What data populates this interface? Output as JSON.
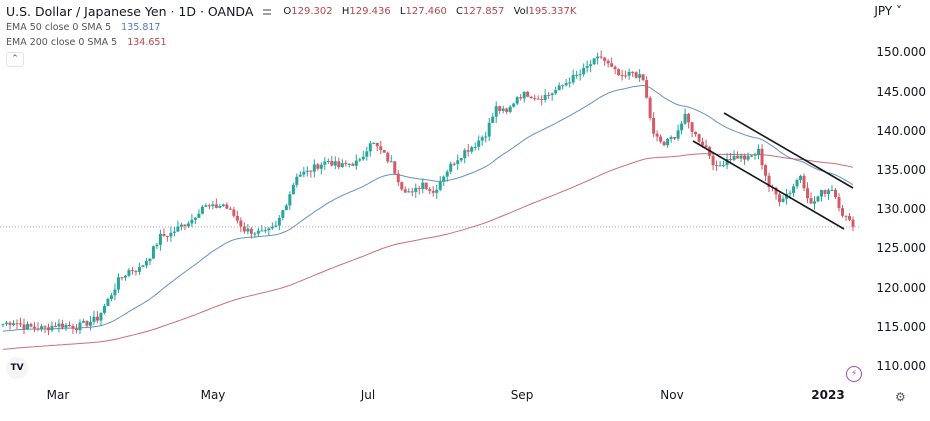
{
  "header": {
    "symbol_title": "U.S. Dollar / Japanese Yen · 1D · OANDA",
    "ohlc": [
      {
        "label": "O",
        "value": "129.302"
      },
      {
        "label": "H",
        "value": "129.436"
      },
      {
        "label": "L",
        "value": "127.460"
      },
      {
        "label": "C",
        "value": "127.857"
      },
      {
        "label": "Vol",
        "value": "195.337K"
      }
    ],
    "indicators": [
      {
        "label": "EMA 50 close 0 SMA 5",
        "value": "135.817",
        "color": "#4a7fb8"
      },
      {
        "label": "EMA 200 close 0 SMA 5",
        "value": "134.651",
        "color": "#c0485a"
      }
    ],
    "collapse_icon": "chevron-up-icon",
    "currency": "JPY",
    "currency_icon": "chevron-down-icon"
  },
  "footer": {
    "logo_text": "TV",
    "bolt_icon": "lightning-icon",
    "settings_icon": "gear-icon"
  },
  "colors": {
    "up": "#26a69a",
    "down": "#d35a66",
    "ema50": "#4a7fb8",
    "ema200": "#c0485a",
    "channel": "#1a1a1a",
    "price_line": "#c9a0a4"
  },
  "chart_data": {
    "type": "candlestick",
    "title": "U.S. Dollar / Japanese Yen · 1D · OANDA",
    "xlabel": "",
    "ylabel": "JPY",
    "x_tick_labels": [
      "Mar",
      "May",
      "Jul",
      "Sep",
      "Nov",
      "2023"
    ],
    "y_tick_labels": [
      "150.000",
      "145.000",
      "140.000",
      "135.000",
      "130.000",
      "125.000",
      "120.000",
      "115.000",
      "110.000"
    ],
    "ylim": [
      108.3,
      152
    ],
    "grid": false,
    "last_price": 127.857,
    "closes_weekly_approx": [
      115.5,
      115.8,
      115.2,
      115.0,
      114.9,
      115.4,
      115.3,
      115.1,
      115.6,
      116.2,
      118.5,
      121.0,
      122.3,
      122.5,
      124.2,
      126.6,
      127.0,
      128.0,
      128.8,
      130.5,
      130.3,
      130.7,
      129.3,
      127.5,
      127.2,
      127.0,
      127.8,
      131.0,
      134.5,
      134.8,
      135.7,
      136.3,
      135.5,
      135.9,
      136.1,
      138.8,
      137.5,
      135.9,
      133.0,
      132.0,
      133.5,
      132.2,
      134.5,
      136.2,
      137.5,
      138.4,
      139.8,
      143.0,
      142.3,
      144.5,
      144.8,
      144.3,
      144.7,
      145.5,
      146.6,
      147.3,
      148.6,
      149.5,
      148.0,
      146.7,
      147.6,
      146.5,
      139.5,
      138.3,
      139.5,
      141.8,
      139.5,
      138.0,
      135.2,
      136.6,
      136.8,
      136.5,
      137.5,
      133.0,
      131.4,
      132.4,
      134.5,
      130.6,
      132.2,
      132.8,
      129.6,
      127.86
    ],
    "series": [
      {
        "name": "EMA 50",
        "last": 135.817
      },
      {
        "name": "EMA 200",
        "last": 134.651
      }
    ],
    "annotations": [
      {
        "type": "trend_channel",
        "upper": {
          "from": [
            724,
            113
          ],
          "to": [
            853,
            188
          ]
        },
        "lower": {
          "from": [
            693,
            141
          ],
          "to": [
            844,
            229
          ]
        }
      }
    ]
  }
}
